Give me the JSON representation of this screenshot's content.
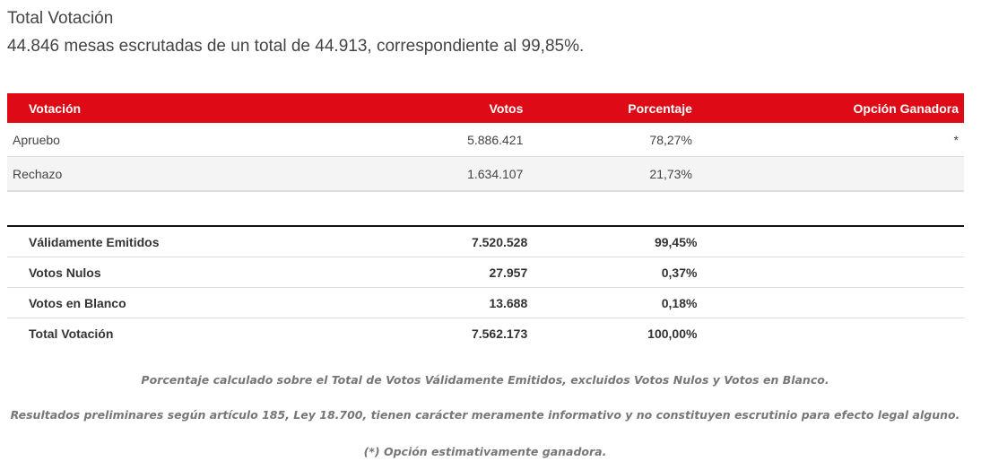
{
  "header": {
    "title": "Total Votación",
    "subtitle": "44.846 mesas escrutadas de un total de 44.913, correspondiente al 99,85%."
  },
  "results_table": {
    "columns": [
      "Votación",
      "Votos",
      "Porcentaje",
      "Opción Ganadora"
    ],
    "rows": [
      {
        "option": "Apruebo",
        "votes": "5.886.421",
        "percent": "78,27%",
        "winner": "*"
      },
      {
        "option": "Rechazo",
        "votes": "1.634.107",
        "percent": "21,73%",
        "winner": ""
      }
    ]
  },
  "summary_table": {
    "rows": [
      {
        "label": "Válidamente Emitidos",
        "votes": "7.520.528",
        "percent": "99,45%"
      },
      {
        "label": "Votos Nulos",
        "votes": "27.957",
        "percent": "0,37%"
      },
      {
        "label": "Votos en Blanco",
        "votes": "13.688",
        "percent": "0,18%"
      },
      {
        "label": "Total Votación",
        "votes": "7.562.173",
        "percent": "100,00%"
      }
    ]
  },
  "notes": [
    "Porcentaje calculado sobre el Total de Votos Válidamente Emitidos, excluidos Votos Nulos y Votos en Blanco.",
    "Resultados preliminares según artículo 185, Ley 18.700, tienen carácter meramente informativo y no constituyen escrutinio para efecto legal alguno.",
    "(*) Opción estimativamente ganadora."
  ],
  "colors": {
    "header_red": "#de0b16",
    "stripe": "#f4f4f4"
  }
}
